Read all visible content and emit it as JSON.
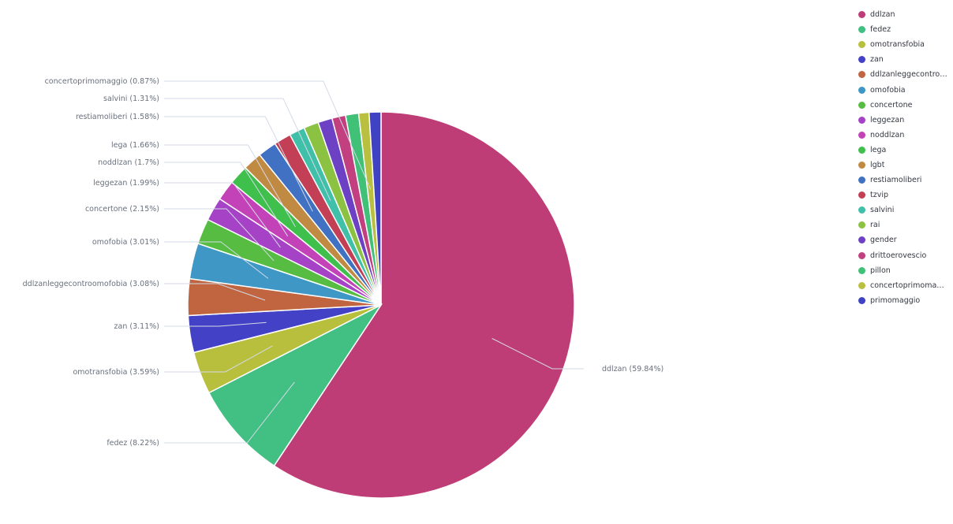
{
  "chart_data": {
    "type": "pie",
    "slices": [
      {
        "name": "ddlzan",
        "label": "ddlzan (59.84%)",
        "value": 59.84,
        "color": "#bf3d76"
      },
      {
        "name": "fedez",
        "label": "fedez (8.22%)",
        "value": 8.22,
        "color": "#42c083"
      },
      {
        "name": "omotransfobia",
        "label": "omotransfobia (3.59%)",
        "value": 3.59,
        "color": "#b8bf3d"
      },
      {
        "name": "zan",
        "label": "zan (3.11%)",
        "value": 3.11,
        "color": "#4341c6"
      },
      {
        "name": "ddlzanleggecontroomofobia",
        "label": "ddlzanleggecontroomofobia (3.08%)",
        "value": 3.08,
        "color": "#c06540"
      },
      {
        "name": "omofobia",
        "label": "omofobia (3.01%)",
        "value": 3.01,
        "color": "#3f97c6"
      },
      {
        "name": "concertone",
        "label": "concertone (2.15%)",
        "value": 2.15,
        "color": "#56bd42"
      },
      {
        "name": "leggezan",
        "label": "leggezan (1.99%)",
        "value": 1.99,
        "color": "#a542c6"
      },
      {
        "name": "noddlzan",
        "label": "noddlzan (1.7%)",
        "value": 1.7,
        "color": "#c342b8"
      },
      {
        "name": "lega",
        "label": "lega (1.66%)",
        "value": 1.66,
        "color": "#3fbf4b"
      },
      {
        "name": "lgbt",
        "label": "",
        "value": 1.6,
        "color": "#c18a42"
      },
      {
        "name": "restiamoliberi",
        "label": "restiamoliberi (1.58%)",
        "value": 1.58,
        "color": "#4071c2"
      },
      {
        "name": "tzvip",
        "label": "",
        "value": 1.45,
        "color": "#c23f55"
      },
      {
        "name": "salvini",
        "label": "salvini (1.31%)",
        "value": 1.31,
        "color": "#40c0a9"
      },
      {
        "name": "rai",
        "label": "",
        "value": 1.25,
        "color": "#8bc242"
      },
      {
        "name": "gender",
        "label": "",
        "value": 1.2,
        "color": "#6d41c4"
      },
      {
        "name": "drittoerovescio",
        "label": "",
        "value": 1.15,
        "color": "#c2407f"
      },
      {
        "name": "pillon",
        "label": "",
        "value": 1.1,
        "color": "#41c078"
      },
      {
        "name": "concertoprimomaggio",
        "label": "concertoprimomaggio (0.87%)",
        "value": 0.87,
        "color": "#b9bf3f"
      },
      {
        "name": "primomaggio",
        "label": "",
        "value": 1.0,
        "color": "#3f43c3"
      }
    ],
    "legend_position": "right"
  },
  "legend": {
    "items": [
      {
        "label": "ddlzan",
        "color": "#bf3d76"
      },
      {
        "label": "fedez",
        "color": "#42c083"
      },
      {
        "label": "omotransfobia",
        "color": "#b8bf3d"
      },
      {
        "label": "zan",
        "color": "#4341c6"
      },
      {
        "label": "ddlzanleggecontroomofobia",
        "color": "#c06540"
      },
      {
        "label": "omofobia",
        "color": "#3f97c6"
      },
      {
        "label": "concertone",
        "color": "#56bd42"
      },
      {
        "label": "leggezan",
        "color": "#a542c6"
      },
      {
        "label": "noddlzan",
        "color": "#c342b8"
      },
      {
        "label": "lega",
        "color": "#3fbf4b"
      },
      {
        "label": "lgbt",
        "color": "#c18a42"
      },
      {
        "label": "restiamoliberi",
        "color": "#4071c2"
      },
      {
        "label": "tzvip",
        "color": "#c23f55"
      },
      {
        "label": "salvini",
        "color": "#40c0a9"
      },
      {
        "label": "rai",
        "color": "#8bc242"
      },
      {
        "label": "gender",
        "color": "#6d41c4"
      },
      {
        "label": "drittoerovescio",
        "color": "#c2407f"
      },
      {
        "label": "pillon",
        "color": "#41c078"
      },
      {
        "label": "concertoprimomaggio",
        "color": "#b9bf3f"
      },
      {
        "label": "primomaggio",
        "color": "#3f43c3"
      }
    ]
  }
}
